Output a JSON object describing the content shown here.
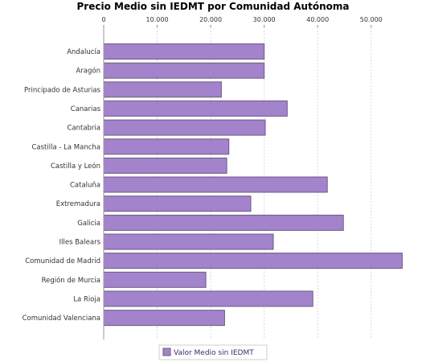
{
  "chart_data": {
    "type": "bar",
    "orientation": "horizontal",
    "title": "Precio Medio sin IEDMT por Comunidad Autónoma",
    "xlabel": "",
    "ylabel": "",
    "xlim": [
      0,
      58000
    ],
    "x_ticks": [
      0,
      10000,
      20000,
      30000,
      40000,
      50000
    ],
    "x_tick_labels": [
      "0",
      "10.000",
      "20.000",
      "30.000",
      "40.000",
      "50.000"
    ],
    "x_axis_position": "top",
    "grid": true,
    "legend_position": "bottom",
    "bar_color": "#a383cc",
    "bar_border_color": "#6b5a85",
    "categories": [
      "Andalucía",
      "Aragón",
      "Principado de Asturias",
      "Canarias",
      "Cantabria",
      "Castilla - La Mancha",
      "Castilla y León",
      "Cataluña",
      "Extremadura",
      "Galicia",
      "Illes Balears",
      "Comunidad de Madrid",
      "Región de Murcia",
      "La Rioja",
      "Comunidad Valenciana"
    ],
    "series": [
      {
        "name": "Valor Medio sin IEDMT",
        "values": [
          30000,
          30000,
          22000,
          34300,
          30200,
          23400,
          23000,
          41800,
          27500,
          44800,
          31700,
          55800,
          19100,
          39100,
          22600
        ]
      }
    ]
  }
}
